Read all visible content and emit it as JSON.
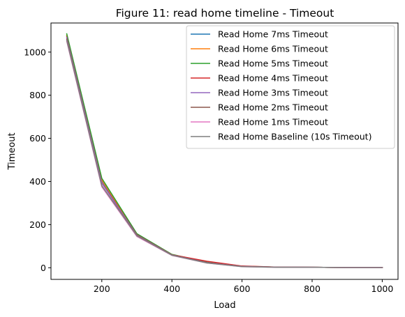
{
  "chart_data": {
    "type": "line",
    "title": "Figure 11: read home timeline - Timeout",
    "xlabel": "Load",
    "ylabel": "Timeout",
    "xlim": [
      55,
      1045
    ],
    "ylim": [
      -54,
      1135
    ],
    "xticks": [
      200,
      400,
      600,
      800,
      1000
    ],
    "yticks": [
      0,
      200,
      400,
      600,
      800,
      1000
    ],
    "grid": false,
    "legend_position": "top-right",
    "x": [
      100,
      200,
      300,
      400,
      500,
      600,
      700,
      800,
      900,
      1000
    ],
    "series": [
      {
        "name": "Read Home 7ms Timeout",
        "color": "#1f77b4",
        "values": [
          1075,
          405,
          155,
          60,
          24,
          6,
          3,
          2,
          1,
          1
        ]
      },
      {
        "name": "Read Home 6ms Timeout",
        "color": "#ff7f0e",
        "values": [
          1078,
          408,
          156,
          61,
          25,
          6,
          3,
          2,
          1,
          1
        ]
      },
      {
        "name": "Read Home 5ms Timeout",
        "color": "#2ca02c",
        "values": [
          1085,
          415,
          158,
          62,
          26,
          7,
          3,
          2,
          1,
          1
        ]
      },
      {
        "name": "Read Home 4ms Timeout",
        "color": "#d62728",
        "values": [
          1070,
          395,
          153,
          60,
          30,
          8,
          3,
          2,
          1,
          1
        ]
      },
      {
        "name": "Read Home 3ms Timeout",
        "color": "#9467bd",
        "values": [
          1068,
          392,
          152,
          59,
          24,
          6,
          3,
          2,
          1,
          1
        ]
      },
      {
        "name": "Read Home 2ms Timeout",
        "color": "#8c564b",
        "values": [
          1060,
          380,
          150,
          58,
          23,
          6,
          3,
          2,
          1,
          1
        ]
      },
      {
        "name": "Read Home 1ms Timeout",
        "color": "#e377c2",
        "values": [
          1050,
          375,
          145,
          57,
          22,
          5,
          2,
          2,
          1,
          1
        ]
      },
      {
        "name": "Read Home Baseline (10s Timeout)",
        "color": "#7f7f7f",
        "values": [
          1055,
          380,
          148,
          58,
          22,
          5,
          2,
          2,
          1,
          1
        ]
      }
    ]
  }
}
